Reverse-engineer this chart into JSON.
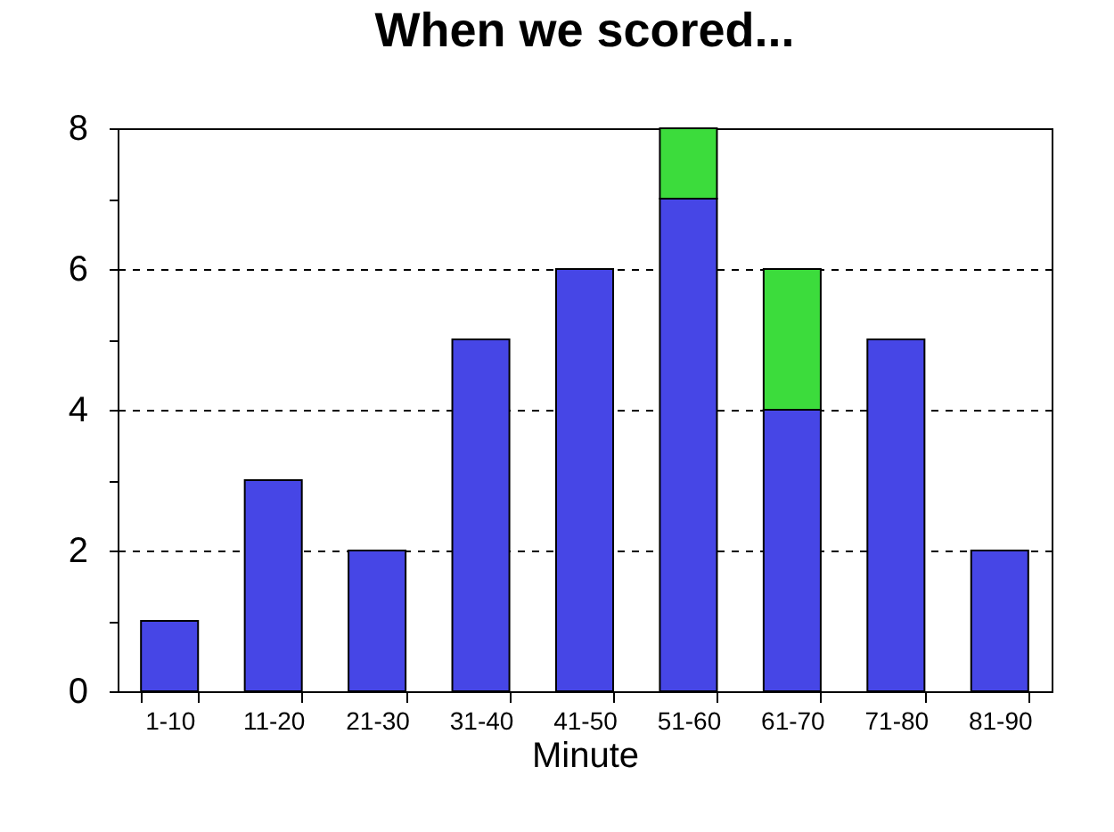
{
  "chart_data": {
    "type": "bar",
    "title": "When we scored...",
    "xlabel": "Minute",
    "categories": [
      "1-10",
      "11-20",
      "21-30",
      "31-40",
      "41-50",
      "51-60",
      "61-70",
      "71-80",
      "81-90"
    ],
    "stacked": true,
    "series": [
      {
        "color": "#4646e6",
        "values": [
          1,
          3,
          2,
          5,
          6,
          7,
          4,
          5,
          2
        ]
      },
      {
        "color": "#3cdc3c",
        "values": [
          null,
          null,
          null,
          null,
          null,
          1,
          2,
          null,
          null
        ]
      }
    ],
    "ylim": [
      0,
      8
    ],
    "yticks": [
      0,
      {
        "value": 1,
        "label": null
      },
      2,
      {
        "value": 3,
        "label": null
      },
      4,
      {
        "value": 5,
        "label": null
      },
      6,
      {
        "value": 7,
        "label": null
      },
      8
    ],
    "grid": "y"
  }
}
